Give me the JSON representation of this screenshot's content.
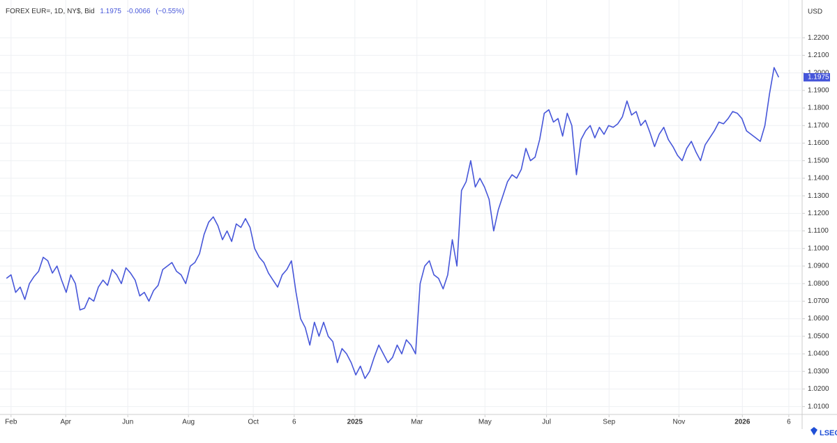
{
  "chart_data": {
    "type": "line",
    "title": "FOREX EUR=, 1D, NY$, Bid",
    "last_price": 1.1975,
    "change": -0.0066,
    "change_pct": {
      "value": -0.55,
      "label": "(−0.55%)"
    },
    "currency": "USD",
    "brand": "LSEG",
    "color": "#4656d9",
    "grid": true,
    "values": [
      1.083,
      1.085,
      1.075,
      1.078,
      1.071,
      1.08,
      1.084,
      1.087,
      1.095,
      1.093,
      1.086,
      1.09,
      1.082,
      1.075,
      1.085,
      1.08,
      1.065,
      1.066,
      1.072,
      1.07,
      1.078,
      1.082,
      1.079,
      1.088,
      1.085,
      1.08,
      1.089,
      1.086,
      1.082,
      1.073,
      1.075,
      1.07,
      1.076,
      1.079,
      1.088,
      1.09,
      1.092,
      1.087,
      1.085,
      1.08,
      1.09,
      1.092,
      1.097,
      1.108,
      1.115,
      1.118,
      1.113,
      1.105,
      1.11,
      1.104,
      1.114,
      1.112,
      1.117,
      1.112,
      1.1,
      1.095,
      1.092,
      1.086,
      1.082,
      1.078,
      1.085,
      1.088,
      1.093,
      1.075,
      1.06,
      1.055,
      1.045,
      1.058,
      1.05,
      1.058,
      1.05,
      1.047,
      1.035,
      1.043,
      1.04,
      1.035,
      1.028,
      1.033,
      1.026,
      1.03,
      1.038,
      1.045,
      1.04,
      1.035,
      1.038,
      1.045,
      1.04,
      1.048,
      1.045,
      1.04,
      1.08,
      1.09,
      1.093,
      1.085,
      1.083,
      1.077,
      1.085,
      1.105,
      1.09,
      1.133,
      1.138,
      1.15,
      1.135,
      1.14,
      1.135,
      1.128,
      1.11,
      1.122,
      1.13,
      1.138,
      1.142,
      1.14,
      1.145,
      1.157,
      1.15,
      1.152,
      1.162,
      1.177,
      1.179,
      1.172,
      1.174,
      1.164,
      1.177,
      1.17,
      1.142,
      1.162,
      1.167,
      1.17,
      1.163,
      1.169,
      1.165,
      1.17,
      1.169,
      1.171,
      1.175,
      1.184,
      1.176,
      1.178,
      1.17,
      1.173,
      1.166,
      1.158,
      1.165,
      1.169,
      1.162,
      1.158,
      1.153,
      1.15,
      1.157,
      1.161,
      1.155,
      1.15,
      1.159,
      1.163,
      1.167,
      1.172,
      1.171,
      1.174,
      1.178,
      1.177,
      1.174,
      1.167,
      1.165,
      1.163,
      1.161,
      1.17,
      1.188,
      1.203,
      1.1975
    ],
    "xlim": [
      -1.4,
      173.1
    ],
    "xticks": [
      {
        "value": 1,
        "label": "Feb"
      },
      {
        "value": 12.9,
        "label": "Apr"
      },
      {
        "value": 26.4,
        "label": "Jun"
      },
      {
        "value": 39.6,
        "label": "Aug"
      },
      {
        "value": 53.7,
        "label": "Oct"
      },
      {
        "value": 62.6,
        "label": "6"
      },
      {
        "value": 75.8,
        "label": "2025"
      },
      {
        "value": 89.3,
        "label": "Mar"
      },
      {
        "value": 104.1,
        "label": "May"
      },
      {
        "value": 117.5,
        "label": "Jul"
      },
      {
        "value": 131.1,
        "label": "Sep"
      },
      {
        "value": 146.3,
        "label": "Nov"
      },
      {
        "value": 160.1,
        "label": "2026"
      },
      {
        "value": 170.2,
        "label": "6"
      }
    ],
    "ylim": [
      1.0055,
      1.2415
    ],
    "yticks": [
      {
        "value": 1.01,
        "label": "1.0100"
      },
      {
        "value": 1.02,
        "label": "1.0200"
      },
      {
        "value": 1.03,
        "label": "1.0300"
      },
      {
        "value": 1.04,
        "label": "1.0400"
      },
      {
        "value": 1.05,
        "label": "1.0500"
      },
      {
        "value": 1.06,
        "label": "1.0600"
      },
      {
        "value": 1.07,
        "label": "1.0700"
      },
      {
        "value": 1.08,
        "label": "1.0800"
      },
      {
        "value": 1.09,
        "label": "1.0900"
      },
      {
        "value": 1.1,
        "label": "1.1000"
      },
      {
        "value": 1.11,
        "label": "1.1100"
      },
      {
        "value": 1.12,
        "label": "1.1200"
      },
      {
        "value": 1.13,
        "label": "1.1300"
      },
      {
        "value": 1.14,
        "label": "1.1400"
      },
      {
        "value": 1.15,
        "label": "1.1500"
      },
      {
        "value": 1.16,
        "label": "1.1600"
      },
      {
        "value": 1.17,
        "label": "1.1700"
      },
      {
        "value": 1.18,
        "label": "1.1800"
      },
      {
        "value": 1.19,
        "label": "1.1900"
      },
      {
        "value": 1.2,
        "label": "1.2000"
      },
      {
        "value": 1.21,
        "label": "1.2100"
      },
      {
        "value": 1.22,
        "label": "1.2200"
      }
    ]
  }
}
